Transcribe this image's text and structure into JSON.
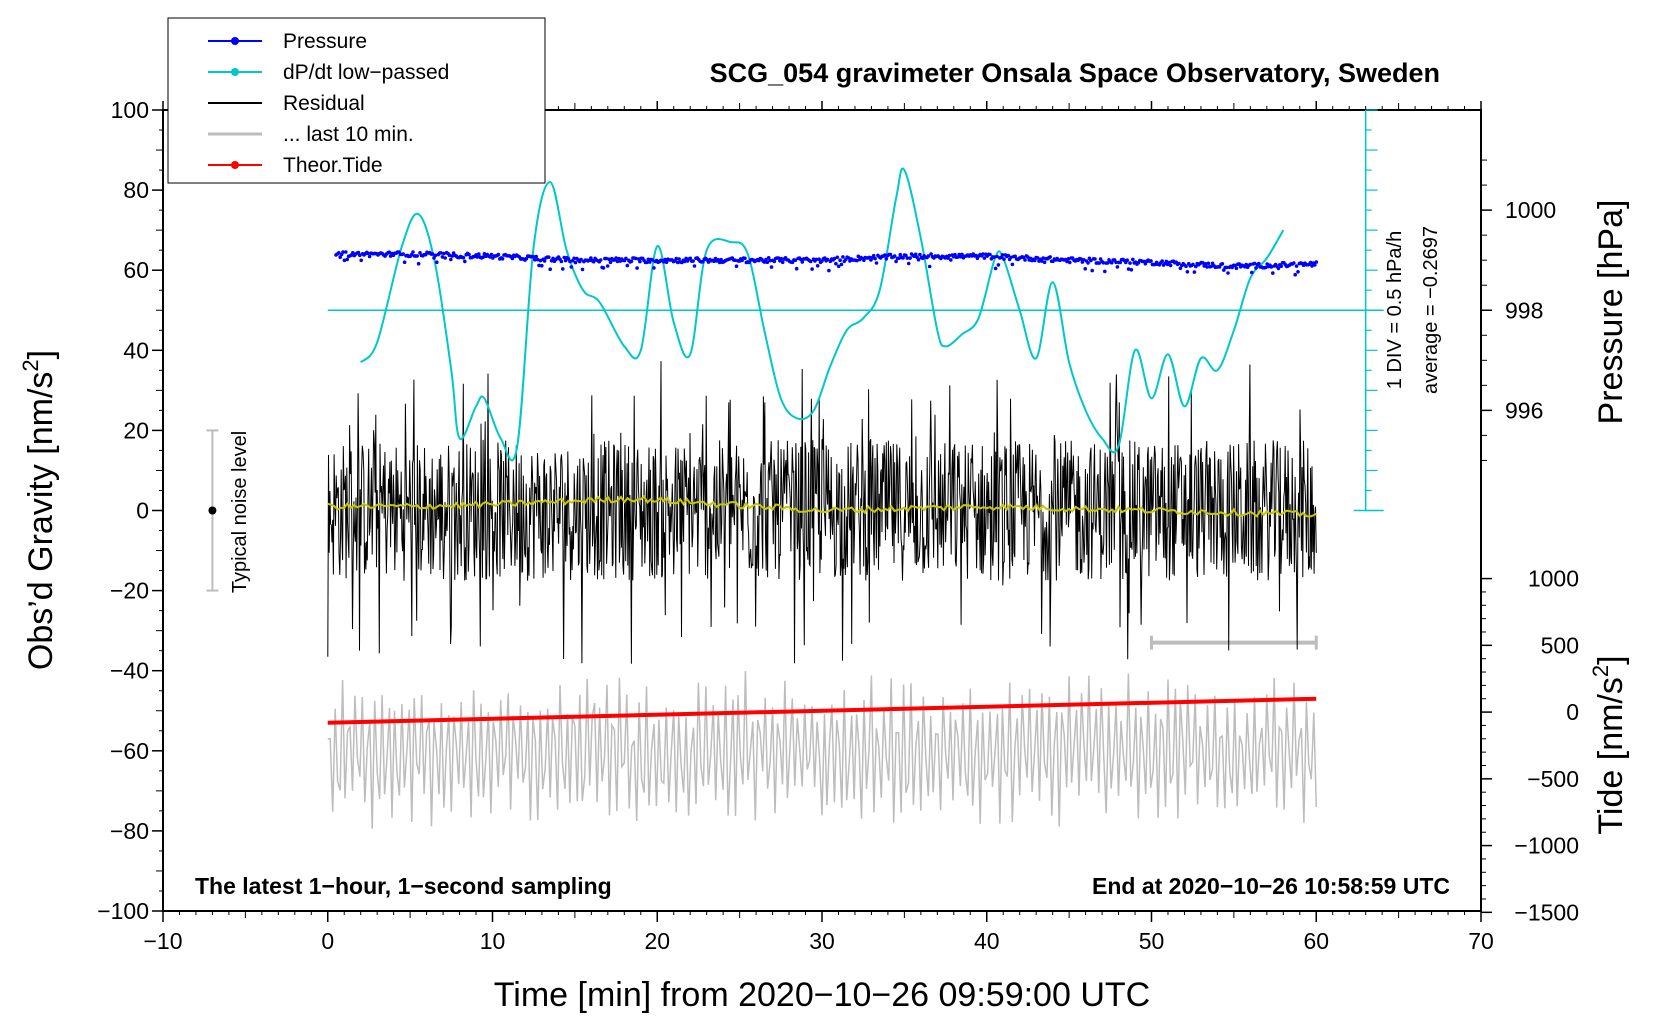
{
  "chart_data": {
    "type": "line",
    "title": "SCG_054 gravimeter Onsala Space Observatory, Sweden",
    "xlabel": "Time [min] from 2020−10−26 09:59:00 UTC",
    "ylabel_left": "Obs’d Gravity [nm/s",
    "ylabel_left_sup": "2",
    "ylabel_left_close": "]",
    "ylabel_pressure": "Pressure [hPa]",
    "ylabel_tide": "Tide [nm/s",
    "ylabel_tide_sup": "2",
    "ylabel_tide_close": "]",
    "xlim": [
      -10,
      70
    ],
    "ylim": [
      -100,
      100
    ],
    "x_ticks": [
      "−10",
      "0",
      "10",
      "20",
      "30",
      "40",
      "50",
      "60",
      "70"
    ],
    "x_tick_values": [
      -10,
      0,
      10,
      20,
      30,
      40,
      50,
      60,
      70
    ],
    "y_ticks": [
      "100",
      "80",
      "60",
      "40",
      "20",
      "0",
      "−20",
      "−40",
      "−60",
      "−80",
      "−100"
    ],
    "y_tick_values": [
      100,
      80,
      60,
      40,
      20,
      0,
      -20,
      -40,
      -60,
      -80,
      -100
    ],
    "pressure_axis": {
      "ticks": [
        "1000",
        "998",
        "996"
      ],
      "values": [
        1000,
        998,
        996
      ],
      "gravity_equivalent": [
        75,
        50,
        25
      ]
    },
    "tide_axis": {
      "ticks": [
        "1000",
        "500",
        "0",
        "−500",
        "−1000",
        "−1500"
      ],
      "values": [
        1000,
        500,
        0,
        -500,
        -1000,
        -1500
      ],
      "gravity_equivalent": [
        -17,
        -33.667,
        -50.333,
        -67,
        -83.667,
        -100.333
      ]
    },
    "legend": [
      {
        "label": "Pressure",
        "color": "#0000ff",
        "marker": true
      },
      {
        "label": "dP/dt low−passed",
        "color": "#00c8c8",
        "marker": true
      },
      {
        "label": "Residual",
        "color": "#000000",
        "marker": false
      },
      {
        "label": "... last 10 min.",
        "color": "#bdbdbd",
        "marker": false
      },
      {
        "label": "Theor.Tide",
        "color": "#ff0000",
        "marker": true
      }
    ],
    "series": [
      {
        "name": "Pressure",
        "color": "#0000ff",
        "x": [
          0.5,
          5,
          10,
          15,
          20,
          25,
          30,
          35,
          40,
          45,
          50,
          55,
          60
        ],
        "y": [
          64,
          64,
          63.5,
          62.5,
          62.5,
          62.5,
          62.5,
          63.5,
          63.5,
          62.5,
          62,
          61,
          61.5
        ]
      },
      {
        "name": "dP/dt low−passed",
        "color": "#00c8c8",
        "x": [
          2,
          3,
          4.5,
          5.5,
          6.5,
          7.5,
          8,
          9,
          9.5,
          10.5,
          11.5,
          12.5,
          13.5,
          14.5,
          15.5,
          16.5,
          18,
          19,
          20,
          21,
          22,
          23,
          24.5,
          25.5,
          26.5,
          27.5,
          28.5,
          29.5,
          30.5,
          31.5,
          32.5,
          33.5,
          34.5,
          35,
          36,
          37,
          37.5,
          38.5,
          39.5,
          40.5,
          41,
          42,
          43,
          44,
          45,
          46,
          47,
          48,
          49,
          50,
          51,
          52,
          53,
          54,
          55,
          56,
          57,
          58
        ],
        "y": [
          37,
          42,
          66,
          74,
          62,
          35,
          18,
          26,
          28,
          18,
          16,
          66,
          82,
          65,
          55,
          52,
          41,
          40,
          66,
          47,
          39,
          65,
          67,
          64,
          45,
          28,
          23,
          25,
          36,
          45,
          48,
          55,
          78,
          85,
          68,
          45,
          41,
          44,
          48,
          63,
          63,
          50,
          38,
          57,
          37,
          25,
          18,
          16,
          40,
          28,
          39,
          26,
          38,
          35,
          45,
          58,
          63,
          70
        ]
      },
      {
        "name": "Residual",
        "color": "#000000",
        "x": [
          0,
          60
        ],
        "y": [
          0,
          0
        ],
        "envelope": 32
      },
      {
        "name": "Residual mean",
        "color": "#c8c800",
        "x": [
          0,
          5,
          10,
          18.5,
          30,
          40,
          50,
          60
        ],
        "y": [
          1,
          1,
          1.5,
          3,
          0,
          1,
          0,
          -1
        ]
      },
      {
        "name": "... last 10 min.",
        "color": "#bdbdbd",
        "x": [
          0,
          60
        ],
        "y": [
          -60,
          -60
        ],
        "envelope": 20
      },
      {
        "name": "Theor.Tide",
        "color": "#ff0000",
        "x": [
          0,
          60
        ],
        "y": [
          -53,
          -47
        ]
      }
    ],
    "noise_level": {
      "label": "Typical noise level",
      "x": -7,
      "center": 0,
      "low": -20,
      "high": 20
    },
    "last10_marker": {
      "x_start": 50,
      "x_end": 60,
      "y": -33
    },
    "cyan_scale": {
      "label1": "1 DIV = 0.5 hPa/h",
      "label2": "average = −0.2697",
      "x": 63,
      "top": 100,
      "bottom": 0,
      "baseline": 50
    },
    "note_left": "The latest 1−hour, 1−second sampling",
    "note_right": "End at 2020−10−26 10:58:59 UTC"
  }
}
